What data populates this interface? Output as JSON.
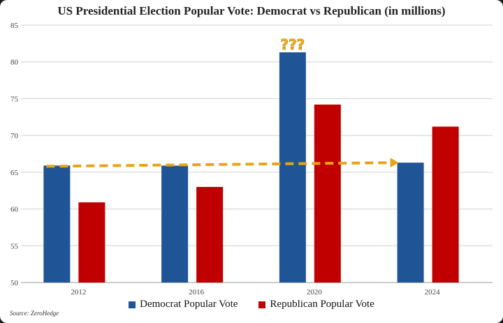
{
  "chart_data": {
    "type": "bar",
    "title": "US Presidential Election Popular Vote: Democrat vs Republican (in millions)",
    "categories": [
      "2012",
      "2016",
      "2020",
      "2024"
    ],
    "series": [
      {
        "name": "Democrat Popular Vote",
        "color": "#1f5496",
        "values": [
          65.9,
          65.9,
          81.3,
          66.3
        ]
      },
      {
        "name": "Republican Popular Vote",
        "color": "#c00000",
        "values": [
          60.9,
          63.0,
          74.2,
          71.2
        ]
      }
    ],
    "ylim": [
      50,
      85
    ],
    "yticks": [
      50,
      55,
      60,
      65,
      70,
      75,
      80,
      85
    ],
    "grid": true,
    "legend_position": "bottom",
    "annotations": [
      {
        "text": "???",
        "color": "#f0b323",
        "category": "2020"
      },
      {
        "type": "dashed-arrow",
        "color": "#e8a317",
        "from": {
          "category": "2012",
          "value": 65.8
        },
        "to": {
          "category": "2024",
          "value": 66.3
        }
      }
    ],
    "source": "Source: ZeroHedge"
  }
}
